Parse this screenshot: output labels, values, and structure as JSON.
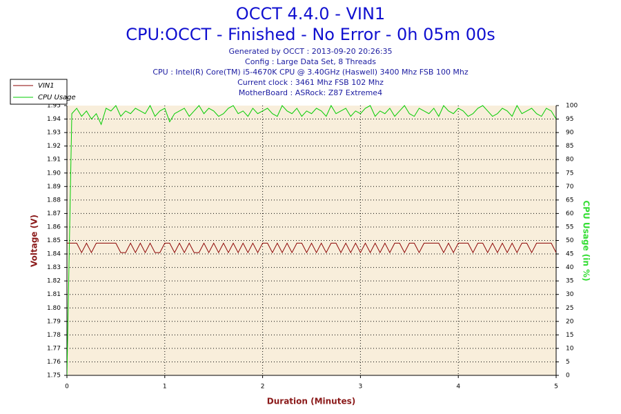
{
  "chart_data": {
    "type": "line",
    "title": "OCCT 4.4.0 - VIN1",
    "subtitle": "CPU:OCCT - Finished - No Error - 0h 05m 00s",
    "info": [
      "Generated by OCCT : 2013-09-20 20:26:35",
      "Config : Large Data Set, 8 Threads",
      "CPU : Intel(R) Core(TM) i5-4670K CPU @ 3.40GHz (Haswell) 3400 Mhz FSB 100 Mhz",
      "Current clock : 3461 Mhz FSB 102 Mhz",
      "MotherBoard : ASRock: Z87 Extreme4"
    ],
    "xlabel": "Duration (Minutes)",
    "ylabel": "Voltage (V)",
    "y2label": "CPU Usage (in %)",
    "legend": "top-left",
    "grid": true,
    "xlim": [
      0,
      5
    ],
    "xticks": [
      0,
      1,
      2,
      3,
      4,
      5
    ],
    "ylim": [
      1.75,
      1.95
    ],
    "yticks": [
      1.75,
      1.76,
      1.77,
      1.78,
      1.79,
      {
        "value": 1.8,
        "label": "1.80"
      },
      1.81,
      1.82,
      1.83,
      1.84,
      1.85,
      1.86,
      1.87,
      1.88,
      1.89,
      {
        "value": 1.9,
        "label": "1.90"
      },
      1.91,
      1.92,
      1.93,
      1.94,
      1.95
    ],
    "y2lim": [
      0,
      100
    ],
    "y2ticks": [
      0,
      5,
      10,
      15,
      20,
      25,
      30,
      35,
      40,
      45,
      50,
      55,
      60,
      65,
      70,
      75,
      80,
      85,
      90,
      95,
      100
    ],
    "x": [
      0,
      0.05,
      0.1,
      0.15,
      0.2,
      0.25,
      0.3,
      0.35,
      0.4,
      0.45,
      0.5,
      0.55,
      0.6,
      0.65,
      0.7,
      0.75,
      0.8,
      0.85,
      0.9,
      0.95,
      1,
      1.05,
      1.1,
      1.15,
      1.2,
      1.25,
      1.3,
      1.35,
      1.4,
      1.45,
      1.5,
      1.55,
      1.6,
      1.65,
      1.7,
      1.75,
      1.8,
      1.85,
      1.9,
      1.95,
      2,
      2.05,
      2.1,
      2.15,
      2.2,
      2.25,
      2.3,
      2.35,
      2.4,
      2.45,
      2.5,
      2.55,
      2.6,
      2.65,
      2.7,
      2.75,
      2.8,
      2.85,
      2.9,
      2.95,
      3,
      3.05,
      3.1,
      3.15,
      3.2,
      3.25,
      3.3,
      3.35,
      3.4,
      3.45,
      3.5,
      3.55,
      3.6,
      3.65,
      3.7,
      3.75,
      3.8,
      3.85,
      3.9,
      3.95,
      4,
      4.05,
      4.1,
      4.15,
      4.2,
      4.25,
      4.3,
      4.35,
      4.4,
      4.45,
      4.5,
      4.55,
      4.6,
      4.65,
      4.7,
      4.75,
      4.8,
      4.85,
      4.9,
      4.95,
      5
    ],
    "series": [
      {
        "name": "VIN1",
        "color": "#8b0000",
        "axis": "y",
        "values": [
          1.848,
          1.848,
          1.848,
          1.841,
          1.848,
          1.841,
          1.848,
          1.848,
          1.848,
          1.848,
          1.848,
          1.841,
          1.841,
          1.848,
          1.841,
          1.848,
          1.841,
          1.848,
          1.841,
          1.841,
          1.848,
          1.848,
          1.841,
          1.848,
          1.841,
          1.848,
          1.841,
          1.841,
          1.848,
          1.841,
          1.848,
          1.841,
          1.848,
          1.841,
          1.848,
          1.841,
          1.848,
          1.841,
          1.848,
          1.841,
          1.848,
          1.848,
          1.841,
          1.848,
          1.841,
          1.848,
          1.841,
          1.848,
          1.848,
          1.841,
          1.848,
          1.841,
          1.848,
          1.841,
          1.848,
          1.848,
          1.841,
          1.848,
          1.841,
          1.848,
          1.841,
          1.848,
          1.841,
          1.848,
          1.841,
          1.848,
          1.841,
          1.848,
          1.848,
          1.841,
          1.848,
          1.848,
          1.841,
          1.848,
          1.848,
          1.848,
          1.848,
          1.841,
          1.848,
          1.841,
          1.848,
          1.848,
          1.848,
          1.841,
          1.848,
          1.848,
          1.841,
          1.848,
          1.841,
          1.848,
          1.841,
          1.848,
          1.841,
          1.848,
          1.848,
          1.841,
          1.848,
          1.848,
          1.848,
          1.848,
          1.841
        ]
      },
      {
        "name": "CPU Usage",
        "color": "#00cc00",
        "axis": "y2",
        "values": [
          0,
          97,
          99,
          96,
          98,
          95,
          97,
          93,
          99,
          98,
          100,
          96,
          98,
          97,
          99,
          98,
          97,
          100,
          96,
          98,
          99,
          94,
          97,
          98,
          99,
          96,
          98,
          100,
          97,
          99,
          98,
          96,
          97,
          99,
          100,
          97,
          98,
          96,
          99,
          97,
          98,
          99,
          97,
          96,
          100,
          98,
          97,
          99,
          96,
          98,
          97,
          99,
          98,
          96,
          100,
          97,
          98,
          99,
          96,
          98,
          97,
          99,
          100,
          96,
          98,
          97,
          99,
          96,
          98,
          100,
          97,
          96,
          99,
          98,
          97,
          99,
          96,
          100,
          98,
          97,
          99,
          98,
          96,
          97,
          99,
          100,
          98,
          96,
          97,
          99,
          98,
          96,
          100,
          97,
          98,
          99,
          97,
          96,
          99,
          98,
          95
        ]
      }
    ]
  }
}
